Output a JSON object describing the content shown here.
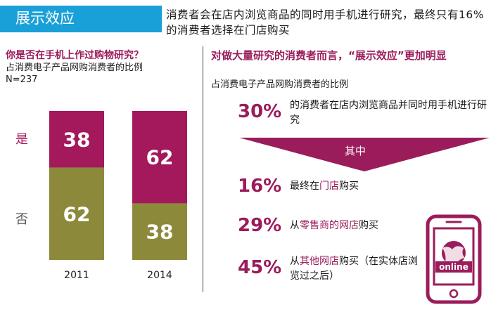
{
  "banner": {
    "title": "展示效应",
    "color": "#1aa0d8"
  },
  "headline": "消费者会在店内浏览商品的同时用手机进行研究，最终只有16%的消费者选择在门店购买",
  "left": {
    "question": "你是否在手机上作过购物研究？",
    "subtitle": "占消费电子产品网购消费者的比例",
    "sample": "N=237"
  },
  "right": {
    "question": "对做大量研究的消费者而言，“展示效应”更加明显",
    "subtitle": "占消费电子产品网购消费者的比例",
    "funnel_label": "其中",
    "stats": [
      {
        "pct": "30%",
        "text": "的消费者在店内浏览商品并同时用手机进行研究"
      },
      {
        "pct": "16%",
        "text_before": "最终在",
        "highlight": "门店",
        "text_after": "购买"
      },
      {
        "pct": "29%",
        "text_before": "从",
        "highlight": "零售商的网店",
        "text_after": "购买"
      },
      {
        "pct": "45%",
        "text_before": "从",
        "highlight": "其他网店",
        "text_after": "购买（在实体店浏览过之后）"
      }
    ],
    "phone_label": "online"
  },
  "colors": {
    "accent": "#9b1c5b",
    "yes": "#a3195b",
    "no": "#8c8a3a",
    "funnel": "#9b1c5b"
  },
  "chart_data": {
    "type": "bar",
    "stacked": true,
    "categories": [
      "2011",
      "2014"
    ],
    "series": [
      {
        "name": "是",
        "values": [
          38,
          62
        ]
      },
      {
        "name": "否",
        "values": [
          62,
          38
        ]
      }
    ],
    "ylim": [
      0,
      100
    ],
    "grid": false,
    "legend": "left"
  }
}
